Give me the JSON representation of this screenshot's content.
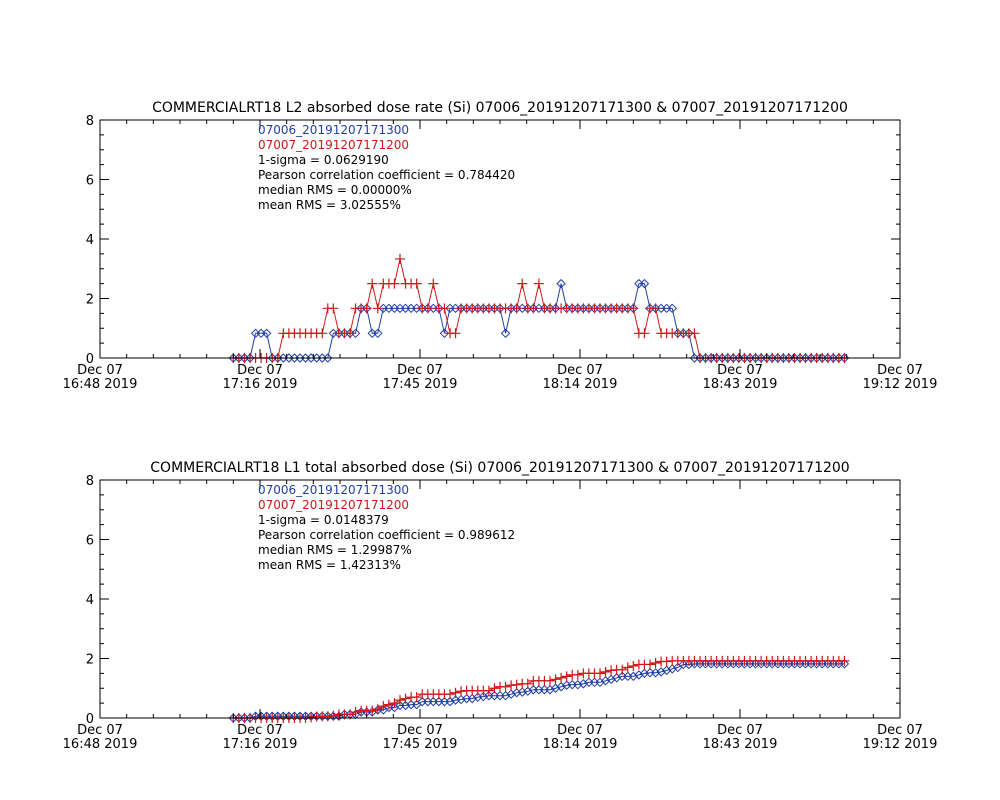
{
  "colors": {
    "axis": "#000000",
    "series1": "#1f3fa6",
    "series2": "#d01818",
    "background": "#ffffff"
  },
  "chart_data": [
    {
      "type": "line",
      "title": "COMMERCIALRT18 L2 absorbed dose rate (Si) 07006_20191207171300 & 07007_20191207171200",
      "xlabel": "",
      "ylabel": "",
      "xlim": [
        0,
        144
      ],
      "ylim": [
        0,
        8
      ],
      "grid": false,
      "legend": "top-left",
      "x_ticks": [
        {
          "line1": "Dec 07",
          "line2": "16:48 2019",
          "t": 0
        },
        {
          "line1": "Dec 07",
          "line2": "17:16 2019",
          "t": 28.8
        },
        {
          "line1": "Dec 07",
          "line2": "17:45 2019",
          "t": 57.6
        },
        {
          "line1": "Dec 07",
          "line2": "18:14 2019",
          "t": 86.4
        },
        {
          "line1": "Dec 07",
          "line2": "18:43 2019",
          "t": 115.2
        },
        {
          "line1": "Dec 07",
          "line2": "19:12 2019",
          "t": 144
        }
      ],
      "y_ticks": [
        "0",
        "2",
        "4",
        "6",
        "8"
      ],
      "annotations": [
        "1-sigma = 0.0629190",
        "Pearson correlation coefficient = 0.784420",
        "median RMS = 0.00000%",
        "mean RMS = 3.02555%"
      ],
      "series": [
        {
          "name": "07006_20191207171300",
          "marker": "diamond",
          "x": [
            24,
            25,
            26,
            27,
            28,
            29,
            30,
            31,
            32,
            33,
            34,
            35,
            36,
            37,
            38,
            39,
            40,
            41,
            42,
            43,
            44,
            45,
            46,
            47,
            48,
            49,
            50,
            51,
            52,
            53,
            54,
            55,
            56,
            57,
            58,
            59,
            60,
            61,
            62,
            63,
            64,
            65,
            66,
            67,
            68,
            69,
            70,
            71,
            72,
            73,
            74,
            75,
            76,
            77,
            78,
            79,
            80,
            81,
            82,
            83,
            84,
            85,
            86,
            87,
            88,
            89,
            90,
            91,
            92,
            93,
            94,
            95,
            96,
            97,
            98,
            99,
            100,
            101,
            102,
            103,
            104,
            105,
            106,
            107,
            108,
            109,
            110,
            111,
            112,
            113,
            114,
            115,
            116,
            117,
            118,
            119,
            120,
            121,
            122,
            123,
            124,
            125,
            126,
            127,
            128,
            129,
            130,
            131,
            132,
            133,
            134
          ],
          "y": [
            0,
            0,
            0,
            0,
            0.83,
            0.83,
            0.83,
            0,
            0,
            0,
            0,
            0,
            0,
            0,
            0,
            0,
            0,
            0,
            0.83,
            0.83,
            0.83,
            0.83,
            0.83,
            1.67,
            1.67,
            0.83,
            0.83,
            1.67,
            1.67,
            1.67,
            1.67,
            1.67,
            1.67,
            1.67,
            1.67,
            1.67,
            1.67,
            1.67,
            0.83,
            1.67,
            1.67,
            1.67,
            1.67,
            1.67,
            1.67,
            1.67,
            1.67,
            1.67,
            1.67,
            0.83,
            1.67,
            1.67,
            1.67,
            1.67,
            1.67,
            1.67,
            1.67,
            1.67,
            1.67,
            2.5,
            1.67,
            1.67,
            1.67,
            1.67,
            1.67,
            1.67,
            1.67,
            1.67,
            1.67,
            1.67,
            1.67,
            1.67,
            1.67,
            2.5,
            2.5,
            1.67,
            1.67,
            1.67,
            1.67,
            1.67,
            0.83,
            0.83,
            0.83,
            0,
            0,
            0,
            0,
            0,
            0,
            0,
            0,
            0,
            0,
            0,
            0,
            0,
            0,
            0,
            0,
            0,
            0,
            0,
            0,
            0,
            0,
            0,
            0,
            0,
            0,
            0,
            0
          ]
        },
        {
          "name": "07007_20191207171200",
          "marker": "plus",
          "x": [
            24,
            25,
            26,
            27,
            28,
            29,
            30,
            31,
            32,
            33,
            34,
            35,
            36,
            37,
            38,
            39,
            40,
            41,
            42,
            43,
            44,
            45,
            46,
            47,
            48,
            49,
            50,
            51,
            52,
            53,
            54,
            55,
            56,
            57,
            58,
            59,
            60,
            61,
            62,
            63,
            64,
            65,
            66,
            67,
            68,
            69,
            70,
            71,
            72,
            73,
            74,
            75,
            76,
            77,
            78,
            79,
            80,
            81,
            82,
            83,
            84,
            85,
            86,
            87,
            88,
            89,
            90,
            91,
            92,
            93,
            94,
            95,
            96,
            97,
            98,
            99,
            100,
            101,
            102,
            103,
            104,
            105,
            106,
            107,
            108,
            109,
            110,
            111,
            112,
            113,
            114,
            115,
            116,
            117,
            118,
            119,
            120,
            121,
            122,
            123,
            124,
            125,
            126,
            127,
            128,
            129,
            130,
            131,
            132,
            133,
            134
          ],
          "y": [
            0,
            0,
            0,
            0,
            0,
            0,
            0,
            0,
            0,
            0.83,
            0.83,
            0.83,
            0.83,
            0.83,
            0.83,
            0.83,
            0.83,
            1.67,
            1.67,
            0.83,
            0.83,
            0.83,
            1.67,
            1.67,
            1.67,
            2.5,
            1.67,
            2.5,
            2.5,
            2.5,
            3.33,
            2.5,
            2.5,
            2.5,
            1.67,
            1.67,
            2.5,
            1.67,
            1.67,
            0.83,
            0.83,
            1.67,
            1.67,
            1.67,
            1.67,
            1.67,
            1.67,
            1.67,
            1.67,
            1.67,
            1.67,
            1.67,
            2.5,
            1.67,
            1.67,
            2.5,
            1.67,
            1.67,
            1.67,
            1.67,
            1.67,
            1.67,
            1.67,
            1.67,
            1.67,
            1.67,
            1.67,
            1.67,
            1.67,
            1.67,
            1.67,
            1.67,
            1.67,
            0.83,
            0.83,
            1.67,
            1.67,
            0.83,
            0.83,
            0.83,
            0.83,
            0.83,
            0.83,
            0.83,
            0,
            0,
            0,
            0,
            0,
            0,
            0,
            0,
            0,
            0,
            0,
            0,
            0,
            0,
            0,
            0,
            0,
            0,
            0,
            0,
            0,
            0,
            0,
            0,
            0,
            0,
            0
          ]
        }
      ]
    },
    {
      "type": "line",
      "title": "COMMERCIALRT18 L1 total absorbed dose (Si) 07006_20191207171300 & 07007_20191207171200",
      "xlabel": "",
      "ylabel": "",
      "xlim": [
        0,
        144
      ],
      "ylim": [
        0,
        8
      ],
      "grid": false,
      "legend": "top-left",
      "x_ticks": [
        {
          "line1": "Dec 07",
          "line2": "16:48 2019",
          "t": 0
        },
        {
          "line1": "Dec 07",
          "line2": "17:16 2019",
          "t": 28.8
        },
        {
          "line1": "Dec 07",
          "line2": "17:45 2019",
          "t": 57.6
        },
        {
          "line1": "Dec 07",
          "line2": "18:14 2019",
          "t": 86.4
        },
        {
          "line1": "Dec 07",
          "line2": "18:43 2019",
          "t": 115.2
        },
        {
          "line1": "Dec 07",
          "line2": "19:12 2019",
          "t": 144
        }
      ],
      "y_ticks": [
        "0",
        "2",
        "4",
        "6",
        "8"
      ],
      "annotations": [
        "1-sigma = 0.0148379",
        "Pearson correlation coefficient = 0.989612",
        "median RMS = 1.29987%",
        "mean RMS = 1.42313%"
      ],
      "series": [
        {
          "name": "07006_20191207171300",
          "marker": "diamond",
          "x": [
            24,
            25,
            26,
            27,
            28,
            29,
            30,
            31,
            32,
            33,
            34,
            35,
            36,
            37,
            38,
            39,
            40,
            41,
            42,
            43,
            44,
            45,
            46,
            47,
            48,
            49,
            50,
            51,
            52,
            53,
            54,
            55,
            56,
            57,
            58,
            59,
            60,
            61,
            62,
            63,
            64,
            65,
            66,
            67,
            68,
            69,
            70,
            71,
            72,
            73,
            74,
            75,
            76,
            77,
            78,
            79,
            80,
            81,
            82,
            83,
            84,
            85,
            86,
            87,
            88,
            89,
            90,
            91,
            92,
            93,
            94,
            95,
            96,
            97,
            98,
            99,
            100,
            101,
            102,
            103,
            104,
            105,
            106,
            107,
            108,
            109,
            110,
            111,
            112,
            113,
            114,
            115,
            116,
            117,
            118,
            119,
            120,
            121,
            122,
            123,
            124,
            125,
            126,
            127,
            128,
            129,
            130,
            131,
            132,
            133,
            134
          ],
          "y": [
            0,
            0,
            0,
            0,
            0.06,
            0.06,
            0.06,
            0.06,
            0.06,
            0.06,
            0.06,
            0.06,
            0.06,
            0.06,
            0.06,
            0.06,
            0.06,
            0.06,
            0.06,
            0.06,
            0.12,
            0.12,
            0.12,
            0.2,
            0.2,
            0.2,
            0.27,
            0.27,
            0.35,
            0.35,
            0.42,
            0.42,
            0.45,
            0.45,
            0.55,
            0.55,
            0.55,
            0.55,
            0.55,
            0.55,
            0.6,
            0.62,
            0.65,
            0.65,
            0.7,
            0.72,
            0.75,
            0.75,
            0.75,
            0.75,
            0.8,
            0.85,
            0.87,
            0.9,
            0.95,
            0.95,
            0.95,
            0.95,
            1.0,
            1.05,
            1.1,
            1.12,
            1.12,
            1.15,
            1.2,
            1.2,
            1.2,
            1.25,
            1.3,
            1.35,
            1.4,
            1.4,
            1.4,
            1.45,
            1.5,
            1.52,
            1.52,
            1.55,
            1.6,
            1.65,
            1.7,
            1.8,
            1.8,
            1.82,
            1.82,
            1.82,
            1.82,
            1.82,
            1.82,
            1.82,
            1.82,
            1.82,
            1.82,
            1.82,
            1.82,
            1.82,
            1.82,
            1.82,
            1.82,
            1.82,
            1.82,
            1.82,
            1.82,
            1.82,
            1.82,
            1.82,
            1.82,
            1.82,
            1.82,
            1.82,
            1.82
          ]
        },
        {
          "name": "07007_20191207171200",
          "marker": "plus",
          "x": [
            24,
            25,
            26,
            27,
            28,
            29,
            30,
            31,
            32,
            33,
            34,
            35,
            36,
            37,
            38,
            39,
            40,
            41,
            42,
            43,
            44,
            45,
            46,
            47,
            48,
            49,
            50,
            51,
            52,
            53,
            54,
            55,
            56,
            57,
            58,
            59,
            60,
            61,
            62,
            63,
            64,
            65,
            66,
            67,
            68,
            69,
            70,
            71,
            72,
            73,
            74,
            75,
            76,
            77,
            78,
            79,
            80,
            81,
            82,
            83,
            84,
            85,
            86,
            87,
            88,
            89,
            90,
            91,
            92,
            93,
            94,
            95,
            96,
            97,
            98,
            99,
            100,
            101,
            102,
            103,
            104,
            105,
            106,
            107,
            108,
            109,
            110,
            111,
            112,
            113,
            114,
            115,
            116,
            117,
            118,
            119,
            120,
            121,
            122,
            123,
            124,
            125,
            126,
            127,
            128,
            129,
            130,
            131,
            132,
            133,
            134
          ],
          "y": [
            0,
            0,
            0,
            0,
            0,
            0,
            0,
            0,
            0,
            0,
            0,
            0,
            0,
            0,
            0.02,
            0.05,
            0.06,
            0.06,
            0.08,
            0.12,
            0.12,
            0.12,
            0.2,
            0.25,
            0.25,
            0.25,
            0.3,
            0.4,
            0.45,
            0.5,
            0.6,
            0.65,
            0.7,
            0.7,
            0.8,
            0.8,
            0.8,
            0.8,
            0.8,
            0.8,
            0.85,
            0.9,
            0.92,
            0.92,
            0.92,
            0.92,
            0.92,
            1.0,
            1.05,
            1.05,
            1.1,
            1.12,
            1.15,
            1.15,
            1.25,
            1.25,
            1.25,
            1.25,
            1.3,
            1.35,
            1.4,
            1.45,
            1.45,
            1.5,
            1.5,
            1.5,
            1.5,
            1.55,
            1.6,
            1.62,
            1.62,
            1.7,
            1.75,
            1.8,
            1.8,
            1.8,
            1.85,
            1.9,
            1.9,
            1.92,
            1.92,
            1.92,
            1.92,
            1.92,
            1.92,
            1.92,
            1.92,
            1.92,
            1.92,
            1.92,
            1.92,
            1.92,
            1.92,
            1.92,
            1.92,
            1.92,
            1.92,
            1.92,
            1.92,
            1.92,
            1.92,
            1.92,
            1.92,
            1.92,
            1.92,
            1.92,
            1.92,
            1.92,
            1.92,
            1.92,
            1.92
          ]
        }
      ]
    }
  ]
}
